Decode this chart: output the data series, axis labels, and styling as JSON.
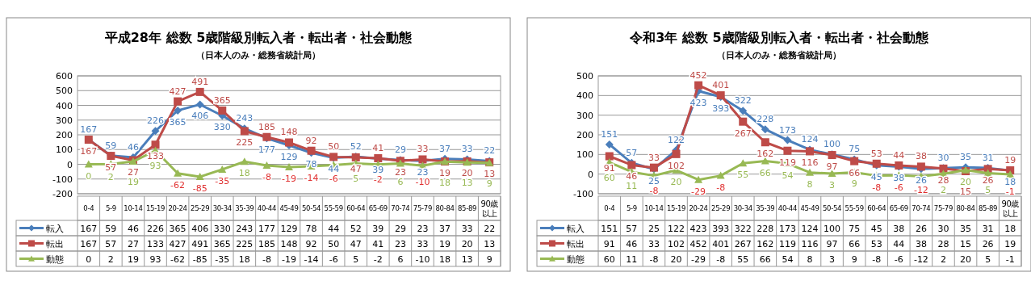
{
  "chart_data": [
    {
      "type": "line",
      "title": "平成28年 総数 5歳階級別転入者・転出者・社会動態",
      "subtitle": "（日本人のみ・総務省統計局）",
      "categories": [
        "0-4",
        "5-9",
        "10-14",
        "15-19",
        "20-24",
        "25-29",
        "30-34",
        "35-39",
        "40-44",
        "45-49",
        "50-54",
        "55-59",
        "60-64",
        "65-69",
        "70-74",
        "75-79",
        "80-84",
        "85-89",
        "90歳以上"
      ],
      "ylim": [
        -200,
        600
      ],
      "yticks": [
        -200,
        -100,
        0,
        100,
        200,
        300,
        400,
        500,
        600
      ],
      "grid": "y",
      "legend": "bottom",
      "data_labels": true,
      "series": [
        {
          "name": "転入",
          "color": "#4a7ebb",
          "marker": "diamond",
          "values": [
            167,
            59,
            46,
            226,
            365,
            406,
            330,
            243,
            177,
            129,
            78,
            44,
            52,
            39,
            29,
            23,
            37,
            33,
            22
          ]
        },
        {
          "name": "転出",
          "color": "#be4b48",
          "marker": "square",
          "values": [
            167,
            57,
            27,
            133,
            427,
            491,
            365,
            225,
            185,
            148,
            92,
            50,
            47,
            41,
            23,
            33,
            19,
            20,
            13
          ]
        },
        {
          "name": "動態",
          "color": "#98b954",
          "marker": "triangle",
          "values": [
            0,
            2,
            19,
            93,
            -62,
            -85,
            -35,
            18,
            -8,
            -19,
            -14,
            -6,
            5,
            -2,
            6,
            -10,
            18,
            13,
            9
          ]
        }
      ],
      "annotations": [
        {
          "text": "167",
          "x": "0-4",
          "y": 167
        },
        {
          "text": "59",
          "x": "5-9",
          "y": 59
        },
        {
          "text": "46",
          "x": "10-14",
          "y": 46
        },
        {
          "text": "226",
          "x": "15-19",
          "y": 226
        },
        {
          "text": "365",
          "x": "20-24",
          "y": 365
        },
        {
          "text": "406",
          "x": "25-29",
          "y": 406
        },
        {
          "text": "330",
          "x": "30-34",
          "y": 330
        },
        {
          "text": "243",
          "x": "35-39",
          "y": 243
        },
        {
          "text": "177",
          "x": "40-44",
          "y": 177
        },
        {
          "text": "129",
          "x": "45-49",
          "y": 129
        },
        {
          "text": "78",
          "x": "50-54",
          "y": 78
        },
        {
          "text": "44",
          "x": "55-59",
          "y": 44
        },
        {
          "text": "52",
          "x": "60-64",
          "y": 52
        },
        {
          "text": "39",
          "x": "65-69",
          "y": 39
        },
        {
          "text": "29",
          "x": "70-74",
          "y": 29
        },
        {
          "text": "23",
          "x": "75-79",
          "y": 23
        },
        {
          "text": "37",
          "x": "80-84",
          "y": 37
        },
        {
          "text": "33",
          "x": "85-89",
          "y": 33
        },
        {
          "text": "22",
          "x": "90歳以上",
          "y": 22
        },
        {
          "text": "167",
          "x": "0-4",
          "y": 167
        },
        {
          "text": "57",
          "x": "5-9",
          "y": 57
        },
        {
          "text": "27",
          "x": "10-14",
          "y": 27
        },
        {
          "text": "133",
          "x": "15-19",
          "y": 133
        },
        {
          "text": "427",
          "x": "20-24",
          "y": 427
        },
        {
          "text": "491",
          "x": "25-29",
          "y": 491
        },
        {
          "text": "365",
          "x": "30-34",
          "y": 365
        },
        {
          "text": "225",
          "x": "35-39",
          "y": 225
        },
        {
          "text": "185",
          "x": "40-44",
          "y": 185
        },
        {
          "text": "148",
          "x": "45-49",
          "y": 148
        },
        {
          "text": "92",
          "x": "50-54",
          "y": 92
        },
        {
          "text": "50",
          "x": "55-59",
          "y": 50
        },
        {
          "text": "47",
          "x": "60-64",
          "y": 47
        },
        {
          "text": "41",
          "x": "65-69",
          "y": 41
        },
        {
          "text": "23",
          "x": "70-74",
          "y": 23
        },
        {
          "text": "33",
          "x": "75-79",
          "y": 33
        },
        {
          "text": "19",
          "x": "80-84",
          "y": 19
        },
        {
          "text": "20",
          "x": "85-89",
          "y": 20
        },
        {
          "text": "13",
          "x": "90歳以上",
          "y": 13
        },
        {
          "text": "0",
          "x": "0-4",
          "y": 0
        },
        {
          "text": "2",
          "x": "5-9",
          "y": 2
        },
        {
          "text": "19",
          "x": "10-14",
          "y": 19
        },
        {
          "text": "93",
          "x": "15-19",
          "y": 93
        },
        {
          "text": "-62",
          "x": "20-24",
          "y": -62
        },
        {
          "text": "-85",
          "x": "25-29",
          "y": -85
        },
        {
          "text": "-35",
          "x": "30-34",
          "y": -35
        },
        {
          "text": "18",
          "x": "35-39",
          "y": 18
        },
        {
          "text": "-8",
          "x": "40-44",
          "y": -8
        },
        {
          "text": "-19",
          "x": "45-49",
          "y": -19
        },
        {
          "text": "-14",
          "x": "50-54",
          "y": -14
        },
        {
          "text": "-6",
          "x": "55-59",
          "y": -6
        },
        {
          "text": "5",
          "x": "60-64",
          "y": 5
        },
        {
          "text": "-2",
          "x": "65-69",
          "y": -2
        },
        {
          "text": "6",
          "x": "70-74",
          "y": 6
        },
        {
          "text": "-10",
          "x": "75-79",
          "y": -10
        },
        {
          "text": "18",
          "x": "80-84",
          "y": 18
        },
        {
          "text": "13",
          "x": "85-89",
          "y": 13
        },
        {
          "text": "9",
          "x": "90歳以上",
          "y": 9
        }
      ]
    },
    {
      "type": "line",
      "title": "令和3年 総数 5歳階級別転入者・転出者・社会動態",
      "subtitle": "（日本人のみ・総務省統計局）",
      "categories": [
        "0-4",
        "5-9",
        "10-14",
        "15-19",
        "20-24",
        "25-29",
        "30-34",
        "35-39",
        "40-44",
        "45-49",
        "50-54",
        "55-59",
        "60-64",
        "65-69",
        "70-74",
        "75-79",
        "80-84",
        "85-89",
        "90歳以上"
      ],
      "ylim": [
        -100,
        500
      ],
      "yticks": [
        -100,
        0,
        100,
        200,
        300,
        400,
        500
      ],
      "grid": "y",
      "legend": "bottom",
      "data_labels": true,
      "series": [
        {
          "name": "転入",
          "color": "#4a7ebb",
          "marker": "diamond",
          "values": [
            151,
            57,
            25,
            122,
            423,
            393,
            322,
            228,
            173,
            124,
            100,
            75,
            45,
            38,
            26,
            30,
            35,
            31,
            18
          ]
        },
        {
          "name": "転出",
          "color": "#be4b48",
          "marker": "square",
          "values": [
            91,
            46,
            33,
            102,
            452,
            401,
            267,
            162,
            119,
            116,
            97,
            66,
            53,
            44,
            38,
            28,
            15,
            26,
            19
          ]
        },
        {
          "name": "動態",
          "color": "#98b954",
          "marker": "triangle",
          "values": [
            60,
            11,
            -8,
            20,
            -29,
            -8,
            55,
            66,
            54,
            8,
            3,
            9,
            -8,
            -6,
            -12,
            2,
            20,
            5,
            -1
          ]
        }
      ],
      "annotations": [
        {
          "text": "151",
          "x": "0-4",
          "y": 151
        },
        {
          "text": "57",
          "x": "5-9",
          "y": 57
        },
        {
          "text": "25",
          "x": "10-14",
          "y": 25
        },
        {
          "text": "122",
          "x": "15-19",
          "y": 122
        },
        {
          "text": "423",
          "x": "20-24",
          "y": 423
        },
        {
          "text": "393",
          "x": "25-29",
          "y": 393
        },
        {
          "text": "322",
          "x": "30-34",
          "y": 322
        },
        {
          "text": "228",
          "x": "35-39",
          "y": 228
        },
        {
          "text": "173",
          "x": "40-44",
          "y": 173
        },
        {
          "text": "124",
          "x": "45-49",
          "y": 124
        },
        {
          "text": "100",
          "x": "50-54",
          "y": 100
        },
        {
          "text": "75",
          "x": "55-59",
          "y": 75
        },
        {
          "text": "45",
          "x": "60-64",
          "y": 45
        },
        {
          "text": "38",
          "x": "65-69",
          "y": 38
        },
        {
          "text": "26",
          "x": "70-74",
          "y": 26
        },
        {
          "text": "30",
          "x": "75-79",
          "y": 30
        },
        {
          "text": "35",
          "x": "80-84",
          "y": 35
        },
        {
          "text": "31",
          "x": "85-89",
          "y": 31
        },
        {
          "text": "18",
          "x": "90歳以上",
          "y": 18
        },
        {
          "text": "91",
          "x": "0-4",
          "y": 91
        },
        {
          "text": "46",
          "x": "5-9",
          "y": 46
        },
        {
          "text": "33",
          "x": "10-14",
          "y": 33
        },
        {
          "text": "102",
          "x": "15-19",
          "y": 102
        },
        {
          "text": "452",
          "x": "20-24",
          "y": 452
        },
        {
          "text": "401",
          "x": "25-29",
          "y": 401
        },
        {
          "text": "267",
          "x": "30-34",
          "y": 267
        },
        {
          "text": "162",
          "x": "35-39",
          "y": 162
        },
        {
          "text": "119",
          "x": "40-44",
          "y": 119
        },
        {
          "text": "116",
          "x": "45-49",
          "y": 116
        },
        {
          "text": "97",
          "x": "50-54",
          "y": 97
        },
        {
          "text": "66",
          "x": "55-59",
          "y": 66
        },
        {
          "text": "53",
          "x": "60-64",
          "y": 53
        },
        {
          "text": "44",
          "x": "65-69",
          "y": 44
        },
        {
          "text": "38",
          "x": "70-74",
          "y": 38
        },
        {
          "text": "28",
          "x": "75-79",
          "y": 28
        },
        {
          "text": "15",
          "x": "80-84",
          "y": 15
        },
        {
          "text": "26",
          "x": "85-89",
          "y": 26
        },
        {
          "text": "19",
          "x": "90歳以上",
          "y": 19
        },
        {
          "text": "60",
          "x": "0-4",
          "y": 60
        },
        {
          "text": "11",
          "x": "5-9",
          "y": 11
        },
        {
          "text": "-8",
          "x": "10-14",
          "y": -8
        },
        {
          "text": "20",
          "x": "15-19",
          "y": 20
        },
        {
          "text": "-29",
          "x": "20-24",
          "y": -29
        },
        {
          "text": "-8",
          "x": "25-29",
          "y": -8
        },
        {
          "text": "55",
          "x": "30-34",
          "y": 55
        },
        {
          "text": "66",
          "x": "35-39",
          "y": 66
        },
        {
          "text": "54",
          "x": "40-44",
          "y": 54
        },
        {
          "text": "8",
          "x": "45-49",
          "y": 8
        },
        {
          "text": "3",
          "x": "50-54",
          "y": 3
        },
        {
          "text": "9",
          "x": "55-59",
          "y": 9
        },
        {
          "text": "-8",
          "x": "60-64",
          "y": -8
        },
        {
          "text": "-6",
          "x": "65-69",
          "y": -6
        },
        {
          "text": "-12",
          "x": "70-74",
          "y": -12
        },
        {
          "text": "2",
          "x": "75-79",
          "y": 2
        },
        {
          "text": "20",
          "x": "80-84",
          "y": 20
        },
        {
          "text": "5",
          "x": "85-89",
          "y": 5
        },
        {
          "text": "-1",
          "x": "90歳以上",
          "y": -1
        }
      ]
    }
  ]
}
